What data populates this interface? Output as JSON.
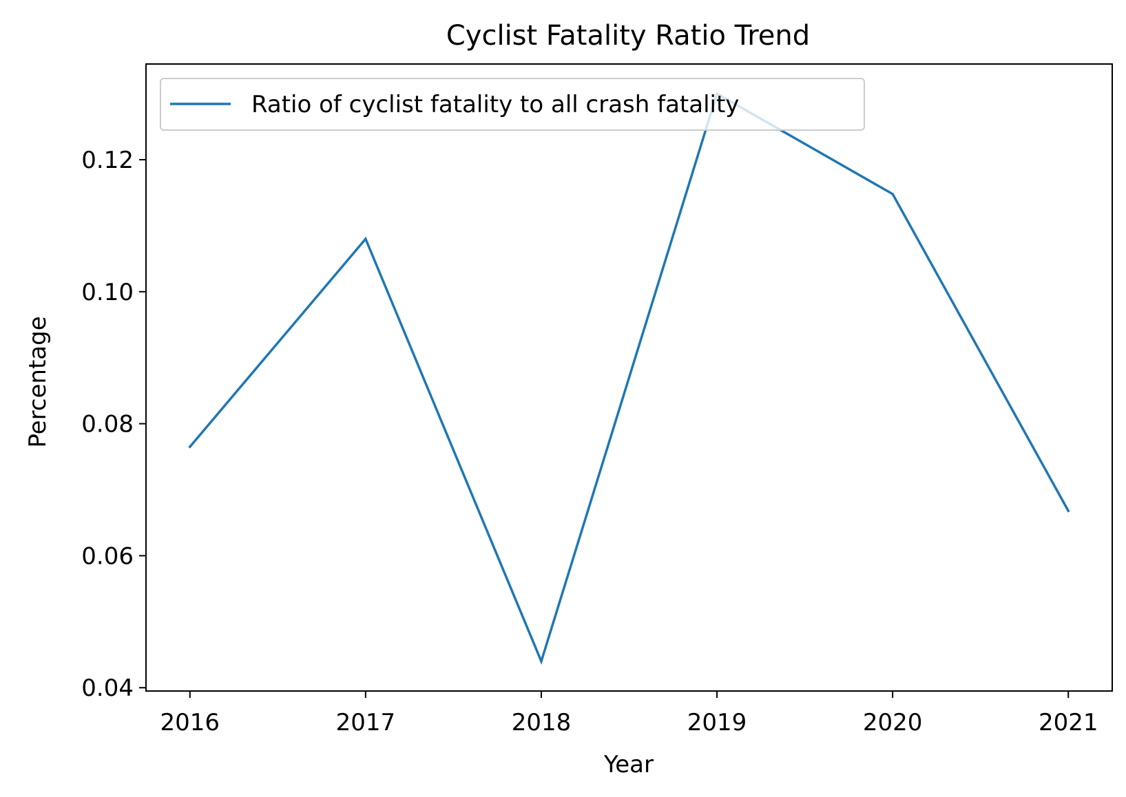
{
  "chart_data": {
    "type": "line",
    "title": "Cyclist Fatality Ratio Trend",
    "xlabel": "Year",
    "ylabel": "Percentage",
    "x": [
      2016,
      2017,
      2018,
      2019,
      2020,
      2021
    ],
    "x_tick_labels": [
      "2016",
      "2017",
      "2018",
      "2019",
      "2020",
      "2021"
    ],
    "y_ticks": [
      0.04,
      0.06,
      0.08,
      0.1,
      0.12
    ],
    "y_tick_labels": [
      "0.04",
      "0.06",
      "0.08",
      "0.10",
      "0.12"
    ],
    "xlim": [
      2015.75,
      2021.25
    ],
    "ylim": [
      0.0395,
      0.1345
    ],
    "grid": false,
    "legend_position": "top-left",
    "series": [
      {
        "name": "Ratio of cyclist fatality to all crash fatality",
        "color": "#1f77b4",
        "values": [
          0.0765,
          0.108,
          0.044,
          0.13,
          0.1148,
          0.0668
        ]
      }
    ]
  }
}
